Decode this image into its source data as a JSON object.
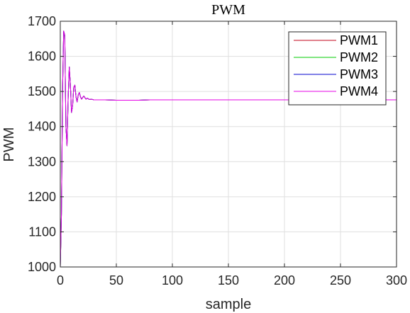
{
  "chart_data": {
    "type": "line",
    "title": "PWM",
    "xlabel": "sample",
    "ylabel": "PWM",
    "xlim": [
      0,
      300
    ],
    "ylim": [
      1000,
      1700
    ],
    "xticks": [
      0,
      50,
      100,
      150,
      200,
      250,
      300
    ],
    "yticks": [
      1000,
      1100,
      1200,
      1300,
      1400,
      1500,
      1600,
      1700
    ],
    "grid": true,
    "legend_position": "top-right",
    "colors": {
      "PWM1": "#c0001a",
      "PWM2": "#00cc00",
      "PWM3": "#0000cc",
      "PWM4": "#e600e6"
    },
    "series": [
      {
        "name": "PWM1",
        "x": [
          0,
          1,
          2,
          3,
          4,
          5,
          6,
          7,
          8,
          9,
          10,
          11,
          12,
          13,
          14,
          15,
          16,
          17,
          18,
          19,
          20,
          21,
          22,
          23,
          24,
          25,
          26,
          28,
          30,
          35,
          40,
          50,
          60,
          70,
          80,
          100,
          150,
          200,
          250,
          300
        ],
        "y": [
          1000,
          1150,
          1500,
          1672,
          1660,
          1400,
          1345,
          1480,
          1570,
          1520,
          1440,
          1460,
          1512,
          1518,
          1485,
          1470,
          1490,
          1497,
          1485,
          1478,
          1483,
          1487,
          1482,
          1478,
          1481,
          1479,
          1477,
          1478,
          1476,
          1476,
          1476,
          1475,
          1475,
          1475,
          1476,
          1476,
          1476,
          1476,
          1476,
          1476
        ]
      },
      {
        "name": "PWM2",
        "x": [
          0,
          1,
          2,
          3,
          4,
          5,
          6,
          7,
          8,
          9,
          10,
          11,
          12,
          13,
          14,
          15,
          16,
          17,
          18,
          19,
          20,
          21,
          22,
          23,
          24,
          25,
          26,
          28,
          30,
          35,
          40,
          50,
          60,
          70,
          80,
          100,
          150,
          200,
          250,
          300
        ],
        "y": [
          1000,
          1150,
          1500,
          1672,
          1660,
          1400,
          1345,
          1480,
          1570,
          1520,
          1440,
          1460,
          1512,
          1518,
          1485,
          1470,
          1490,
          1497,
          1485,
          1478,
          1483,
          1487,
          1482,
          1478,
          1481,
          1479,
          1477,
          1478,
          1476,
          1476,
          1476,
          1475,
          1475,
          1475,
          1476,
          1476,
          1476,
          1476,
          1476,
          1476
        ]
      },
      {
        "name": "PWM3",
        "x": [
          0,
          1,
          2,
          3,
          4,
          5,
          6,
          7,
          8,
          9,
          10,
          11,
          12,
          13,
          14,
          15,
          16,
          17,
          18,
          19,
          20,
          21,
          22,
          23,
          24,
          25,
          26,
          28,
          30,
          35,
          40,
          50,
          60,
          70,
          80,
          100,
          150,
          200,
          250,
          300
        ],
        "y": [
          1000,
          1150,
          1500,
          1672,
          1660,
          1400,
          1345,
          1480,
          1570,
          1520,
          1440,
          1460,
          1512,
          1518,
          1485,
          1470,
          1490,
          1497,
          1485,
          1478,
          1483,
          1487,
          1482,
          1478,
          1481,
          1479,
          1477,
          1478,
          1476,
          1476,
          1476,
          1475,
          1475,
          1475,
          1476,
          1476,
          1476,
          1476,
          1476,
          1476
        ]
      },
      {
        "name": "PWM4",
        "x": [
          0,
          1,
          2,
          3,
          4,
          5,
          6,
          7,
          8,
          9,
          10,
          11,
          12,
          13,
          14,
          15,
          16,
          17,
          18,
          19,
          20,
          21,
          22,
          23,
          24,
          25,
          26,
          28,
          30,
          35,
          40,
          50,
          60,
          70,
          80,
          100,
          150,
          200,
          250,
          300
        ],
        "y": [
          1000,
          1150,
          1500,
          1672,
          1660,
          1400,
          1345,
          1480,
          1570,
          1520,
          1440,
          1460,
          1512,
          1518,
          1485,
          1470,
          1490,
          1497,
          1485,
          1478,
          1483,
          1487,
          1482,
          1478,
          1481,
          1479,
          1477,
          1478,
          1476,
          1476,
          1476,
          1475,
          1475,
          1475,
          1476,
          1476,
          1476,
          1476,
          1476,
          1476
        ]
      }
    ]
  }
}
